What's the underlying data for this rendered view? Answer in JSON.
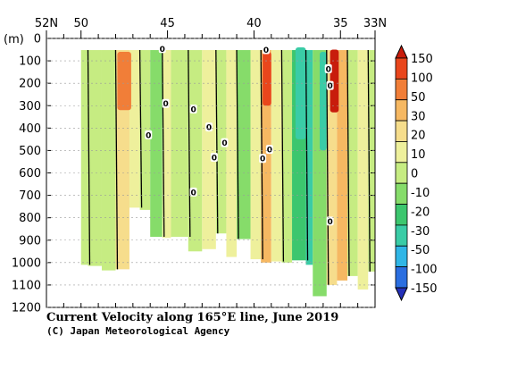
{
  "chart_data": {
    "type": "heatmap",
    "title": "Current Velocity along 165°E line, June 2019",
    "credit": "(C) Japan Meteorological Agency",
    "ylabel": "(m)",
    "xlim_lat": [
      52,
      33
    ],
    "ylim_depth": [
      0,
      1200
    ],
    "x_ticks": [
      {
        "lat": 52,
        "label": "52N"
      },
      {
        "lat": 50,
        "label": "50"
      },
      {
        "lat": 45,
        "label": "45"
      },
      {
        "lat": 40,
        "label": "40"
      },
      {
        "lat": 35,
        "label": "35"
      },
      {
        "lat": 33,
        "label": "33N"
      }
    ],
    "y_ticks": [
      0,
      100,
      200,
      300,
      400,
      500,
      600,
      700,
      800,
      900,
      1000,
      1100,
      1200
    ],
    "colorbar": {
      "labels": [
        "150",
        "100",
        "50",
        "30",
        "20",
        "10",
        "0",
        "-10",
        "-20",
        "-30",
        "-50",
        "-100",
        "-150"
      ],
      "colors": [
        "#c81c0c",
        "#e9461c",
        "#f17e38",
        "#f6b862",
        "#f6dd8c",
        "#eef09c",
        "#c6ec82",
        "#86dc6a",
        "#3cc66e",
        "#3acca6",
        "#30b6e6",
        "#2a6ee0",
        "#2430b8"
      ]
    },
    "contour_zero_label": "0",
    "columns": [
      {
        "lat1": 50.0,
        "lat2": 49.6,
        "max": 1010,
        "v": 0
      },
      {
        "lat1": 49.6,
        "lat2": 48.8,
        "max": 1015,
        "v": -8
      },
      {
        "lat1": 48.8,
        "lat2": 48.0,
        "max": 1035,
        "v": -5
      },
      {
        "lat1": 48.0,
        "lat2": 47.2,
        "max": 1030,
        "v": 12
      },
      {
        "lat1": 47.2,
        "lat2": 46.6,
        "max": 755,
        "v": 2
      },
      {
        "lat1": 46.6,
        "lat2": 46.0,
        "max": 765,
        "v": -4
      },
      {
        "lat1": 46.0,
        "lat2": 45.3,
        "max": 885,
        "v": -12
      },
      {
        "lat1": 45.3,
        "lat2": 44.8,
        "max": 890,
        "v": 6
      },
      {
        "lat1": 44.8,
        "lat2": 43.8,
        "max": 885,
        "v": -2
      },
      {
        "lat1": 43.8,
        "lat2": 43.0,
        "max": 950,
        "v": -6
      },
      {
        "lat1": 43.0,
        "lat2": 42.2,
        "max": 940,
        "v": 2
      },
      {
        "lat1": 42.2,
        "lat2": 41.6,
        "max": 870,
        "v": -9
      },
      {
        "lat1": 41.6,
        "lat2": 41.0,
        "max": 975,
        "v": 5
      },
      {
        "lat1": 41.0,
        "lat2": 40.2,
        "max": 895,
        "v": -14
      },
      {
        "lat1": 40.2,
        "lat2": 39.6,
        "max": 985,
        "v": 4
      },
      {
        "lat1": 39.6,
        "lat2": 39.0,
        "max": 1000,
        "v": 22
      },
      {
        "lat1": 39.0,
        "lat2": 38.4,
        "max": 995,
        "v": 10
      },
      {
        "lat1": 38.4,
        "lat2": 37.8,
        "max": 1000,
        "v": 0
      },
      {
        "lat1": 37.8,
        "lat2": 37.0,
        "max": 990,
        "v": -22
      },
      {
        "lat1": 37.0,
        "lat2": 36.6,
        "max": 1010,
        "v": -32
      },
      {
        "lat1": 36.6,
        "lat2": 35.8,
        "max": 1150,
        "v": -12
      },
      {
        "lat1": 35.8,
        "lat2": 35.2,
        "max": 1100,
        "v": 18
      },
      {
        "lat1": 35.2,
        "lat2": 34.6,
        "max": 1080,
        "v": 28
      },
      {
        "lat1": 34.6,
        "lat2": 34.0,
        "max": 1060,
        "v": -6
      },
      {
        "lat1": 34.0,
        "lat2": 33.4,
        "max": 1120,
        "v": 3
      },
      {
        "lat1": 33.4,
        "lat2": 33.0,
        "max": 1040,
        "v": -3
      }
    ],
    "highlights": [
      {
        "lat1": 47.9,
        "lat2": 47.1,
        "d1": 60,
        "d2": 320,
        "v": 35
      },
      {
        "lat1": 39.5,
        "lat2": 39.0,
        "d1": 60,
        "d2": 300,
        "v": 60
      },
      {
        "lat1": 35.6,
        "lat2": 35.1,
        "d1": 50,
        "d2": 330,
        "v": 110
      },
      {
        "lat1": 37.6,
        "lat2": 37.0,
        "d1": 40,
        "d2": 450,
        "v": -40
      },
      {
        "lat1": 36.2,
        "lat2": 35.8,
        "d1": 60,
        "d2": 500,
        "v": -35
      }
    ],
    "zero_labels": [
      {
        "lat": 45.3,
        "depth": 45
      },
      {
        "lat": 45.1,
        "depth": 290
      },
      {
        "lat": 46.1,
        "depth": 430
      },
      {
        "lat": 43.5,
        "depth": 315
      },
      {
        "lat": 42.6,
        "depth": 395
      },
      {
        "lat": 42.3,
        "depth": 530
      },
      {
        "lat": 41.7,
        "depth": 465
      },
      {
        "lat": 43.5,
        "depth": 685
      },
      {
        "lat": 39.3,
        "depth": 50
      },
      {
        "lat": 39.5,
        "depth": 535
      },
      {
        "lat": 39.1,
        "depth": 495
      },
      {
        "lat": 35.7,
        "depth": 135
      },
      {
        "lat": 35.6,
        "depth": 210
      },
      {
        "lat": 35.6,
        "depth": 815
      }
    ]
  }
}
